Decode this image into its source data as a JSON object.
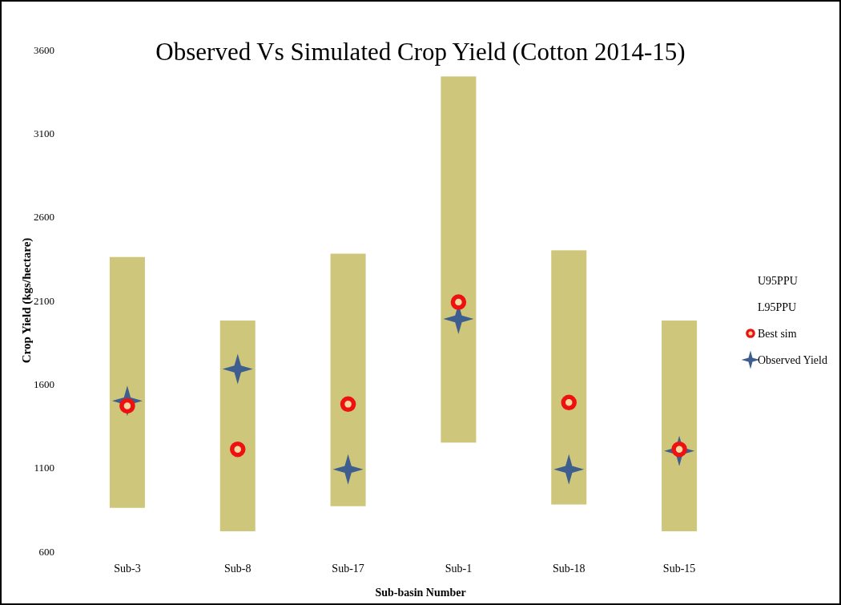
{
  "chart_data": {
    "type": "bar",
    "title": "Observed Vs Simulated Crop Yield (Cotton 2014-15)",
    "xlabel": "Sub-basin Number",
    "ylabel": "Crop Yield (kgs/hectare)",
    "categories": [
      "Sub-3",
      "Sub-8",
      "Sub-17",
      "Sub-1",
      "Sub-18",
      "Sub-15"
    ],
    "ylim": [
      600,
      3600
    ],
    "yticks": [
      600,
      1100,
      1600,
      2100,
      2600,
      3100,
      3600
    ],
    "grid": false,
    "legend": "right",
    "annotations": [
      "U95PPU",
      "L95PPU"
    ],
    "series": [
      {
        "color": "#cec67a",
        "base": [
          860,
          720,
          870,
          1250,
          880,
          720
        ],
        "values": [
          1500,
          1260,
          1510,
          2190,
          1520,
          1260
        ]
      },
      {
        "name": "Best sim",
        "type": "scatter",
        "marker": "circle",
        "color": "#ee1111",
        "x": [
          "Sub-3",
          "Sub-8",
          "Sub-17",
          "Sub-1",
          "Sub-18",
          "Sub-15"
        ],
        "values": [
          1470,
          1210,
          1480,
          2090,
          1490,
          1210
        ]
      },
      {
        "name": "Observed Yield",
        "type": "scatter",
        "marker": "star",
        "color": "#3d5e8e",
        "x": [
          "Sub-3",
          "Sub-8",
          "Sub-17",
          "Sub-1",
          "Sub-18",
          "Sub-15"
        ],
        "values": [
          1500,
          1690,
          1090,
          1990,
          1090,
          1200
        ]
      }
    ]
  }
}
